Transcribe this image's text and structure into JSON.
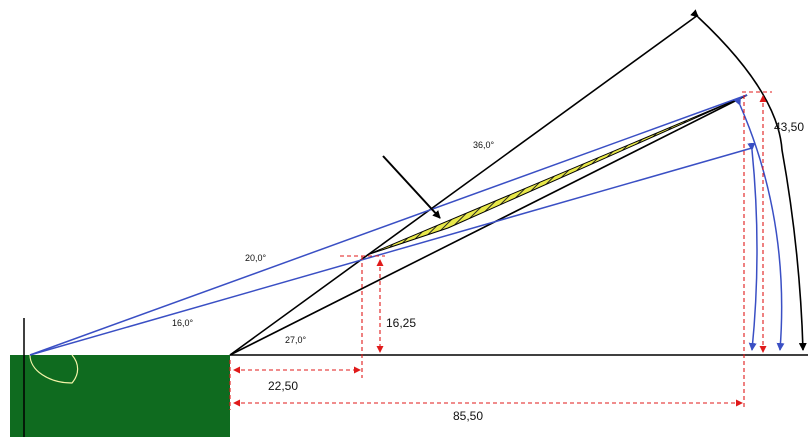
{
  "diagram": {
    "angles": {
      "a36": "36,0°",
      "a20": "20,0°",
      "a16": "16,0°",
      "a27": "27,0°"
    },
    "dimensions": {
      "h1625": "16,25",
      "h4350": "43,50",
      "d2250": "22,50",
      "d8550": "85,50"
    },
    "colors": {
      "field_green": "#0f6b1f",
      "field_line": "#f4f4a8",
      "hatch_fill": "#e8e84a",
      "hatch_stripe": "#222222",
      "blue_lines": "#3a4fc4",
      "red_dims": "#e01a1a",
      "black_lines": "#000000"
    }
  }
}
